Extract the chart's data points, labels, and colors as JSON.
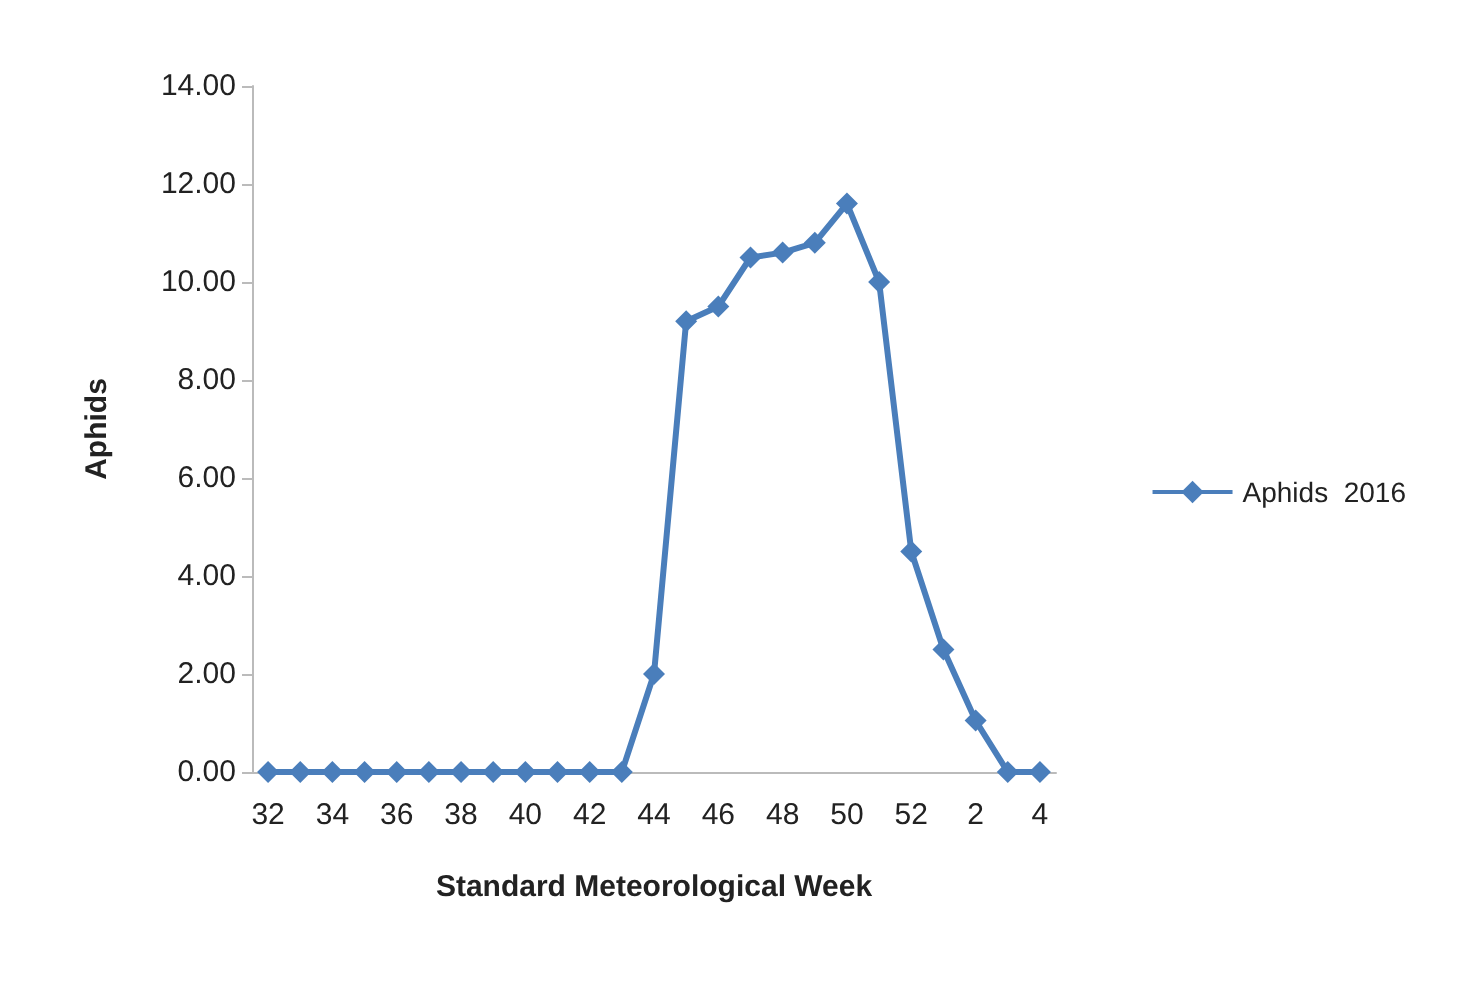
{
  "chart_data": {
    "type": "line",
    "xlabel": "Standard Meteorological Week",
    "ylabel": "Aphids",
    "categories": [
      "32",
      null,
      "34",
      null,
      "36",
      null,
      "38",
      null,
      "40",
      null,
      "42",
      null,
      "44",
      null,
      "46",
      null,
      "48",
      null,
      "50",
      null,
      "52",
      null,
      "2",
      null,
      "4"
    ],
    "series": [
      {
        "name": "Aphids  2016",
        "color": "#4a7ebb",
        "values": [
          0,
          0,
          0,
          0,
          0,
          0,
          0,
          0,
          0,
          0,
          0,
          0,
          2.0,
          9.2,
          9.5,
          10.5,
          10.6,
          10.8,
          11.6,
          10.0,
          4.5,
          2.5,
          1.05,
          0,
          0
        ]
      }
    ],
    "ylim": [
      0,
      14
    ],
    "yticks": [
      {
        "value": 0,
        "label": "0.00"
      },
      {
        "value": 2,
        "label": "2.00"
      },
      {
        "value": 4,
        "label": "4.00"
      },
      {
        "value": 6,
        "label": "6.00"
      },
      {
        "value": 8,
        "label": "8.00"
      },
      {
        "value": 10,
        "label": "10.00"
      },
      {
        "value": 12,
        "label": "12.00"
      },
      {
        "value": 14,
        "label": "14.00"
      }
    ],
    "grid": false,
    "legend": "right",
    "marker": "diamond",
    "line_style": "solid"
  }
}
